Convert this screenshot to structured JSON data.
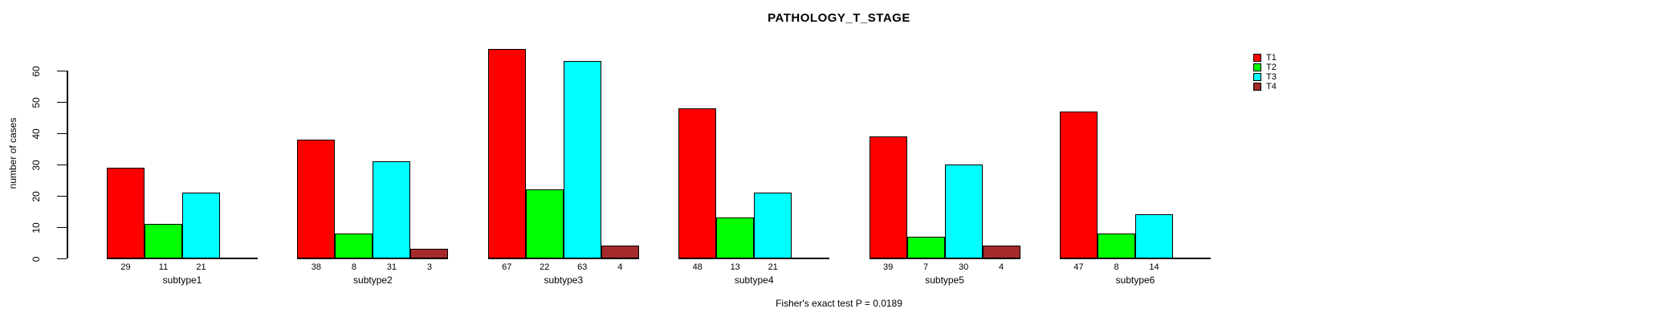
{
  "chart_data": {
    "type": "bar",
    "title": "PATHOLOGY_T_STAGE",
    "ylabel": "number of cases",
    "footnote": "Fisher's exact test P = 0.0189",
    "categories": [
      "subtype1",
      "subtype2",
      "subtype3",
      "subtype4",
      "subtype5",
      "subtype6"
    ],
    "series": [
      {
        "name": "T1",
        "color": "#FF0000",
        "values": [
          29,
          38,
          67,
          48,
          39,
          47
        ]
      },
      {
        "name": "T2",
        "color": "#00FF00",
        "values": [
          11,
          8,
          22,
          13,
          7,
          8
        ]
      },
      {
        "name": "T3",
        "color": "#00FFFF",
        "values": [
          21,
          31,
          63,
          21,
          30,
          14
        ]
      },
      {
        "name": "T4",
        "color": "#A52A2A",
        "values": [
          0,
          3,
          4,
          0,
          4,
          0
        ]
      }
    ],
    "yticks": [
      0,
      10,
      20,
      30,
      40,
      50,
      60
    ],
    "ylim": [
      0,
      60
    ],
    "grid": false,
    "legend_position": "top-right",
    "bar_value_labels_shown": true,
    "zero_values_hidden": true
  },
  "colors": {
    "background": "#FFFFFF",
    "axis": "#000000",
    "text": "#000000"
  }
}
